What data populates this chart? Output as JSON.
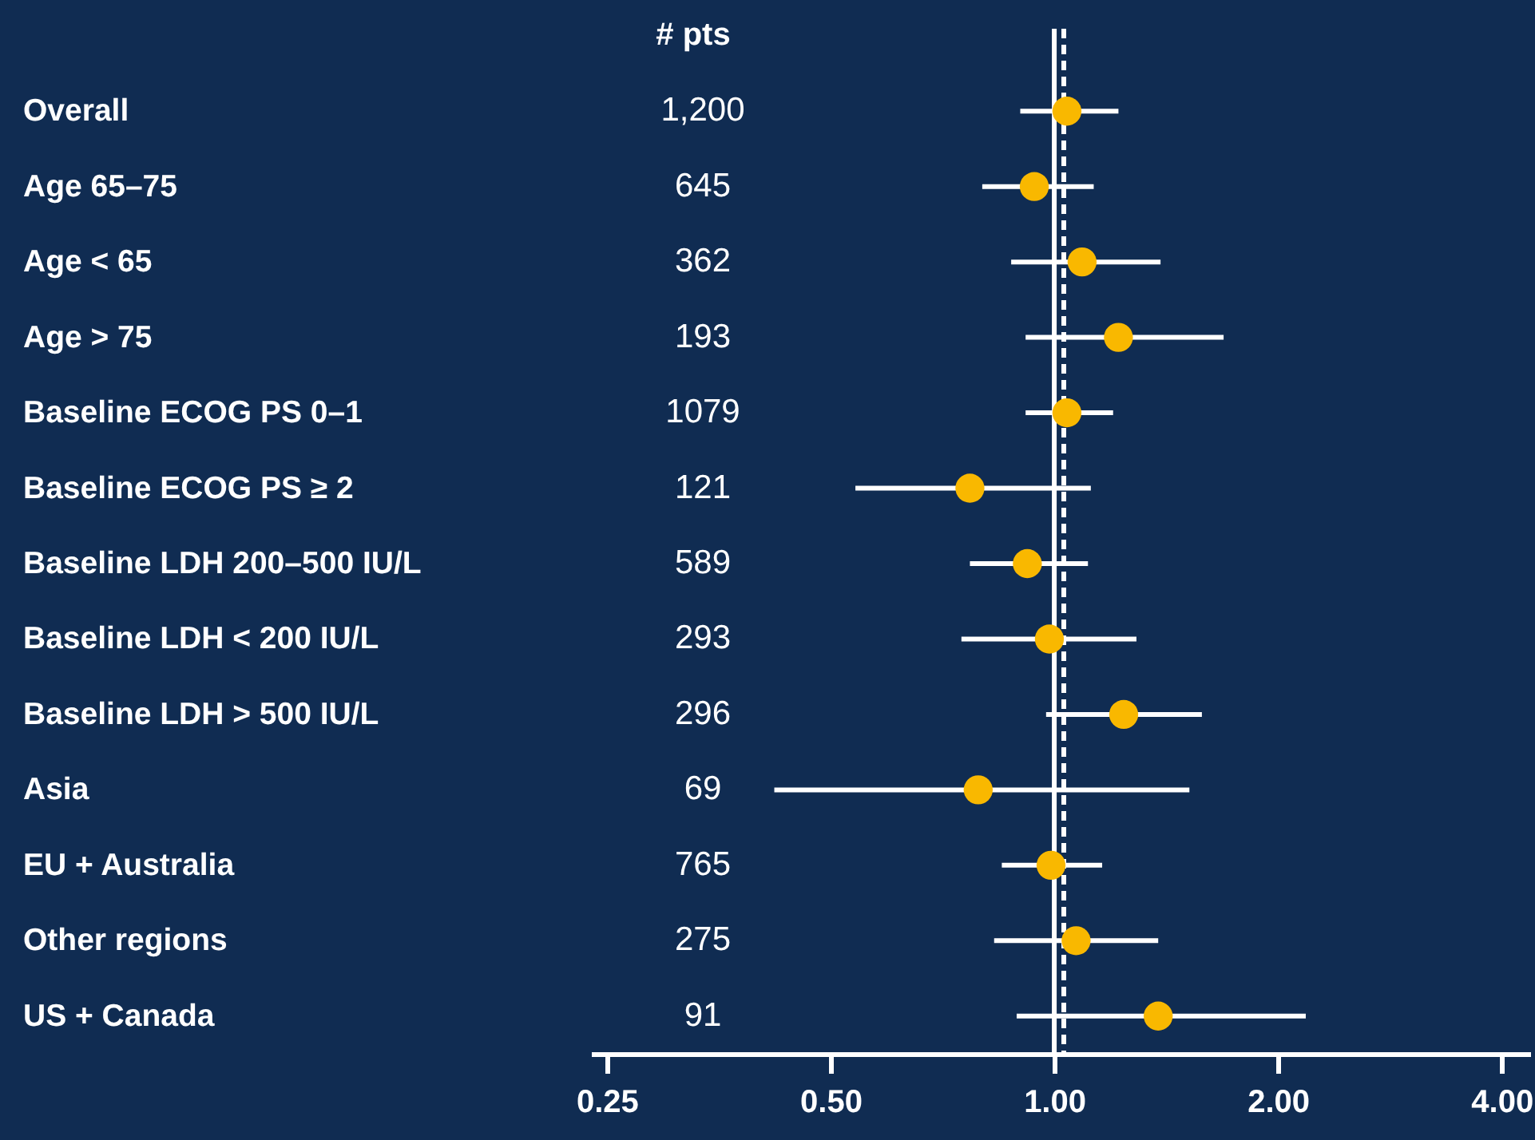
{
  "chart_data": {
    "type": "scatter",
    "orientation": "horizontal",
    "categories": [
      "Overall",
      "Age 65–75",
      "Age < 65",
      "Age > 75",
      "Baseline ECOG PS 0–1",
      "Baseline ECOG PS ≥ 2",
      "Baseline LDH 200–500 IU/L",
      "Baseline LDH < 200 IU/L",
      "Baseline LDH > 500 IU/L",
      "Asia",
      "EU + Australia",
      "Other regions",
      "US + Canada"
    ],
    "color": "#f9b800",
    "values": [
      1.04,
      0.94,
      1.09,
      1.22,
      1.04,
      0.77,
      0.92,
      0.985,
      1.24,
      0.79,
      0.99,
      1.07,
      1.38
    ],
    "errors": [
      [
        0.9,
        1.22
      ],
      [
        0.8,
        1.13
      ],
      [
        0.875,
        1.39
      ],
      [
        0.915,
        1.69
      ],
      [
        0.915,
        1.2
      ],
      [
        0.54,
        1.12
      ],
      [
        0.77,
        1.11
      ],
      [
        0.75,
        1.29
      ],
      [
        0.975,
        1.58
      ],
      [
        0.42,
        1.52
      ],
      [
        0.85,
        1.16
      ],
      [
        0.83,
        1.38
      ],
      [
        0.89,
        2.18
      ]
    ],
    "annotations": [
      "# pts",
      "1,200",
      "645",
      "362",
      "193",
      "1079",
      "121",
      "589",
      "293",
      "296",
      "69",
      "765",
      "275",
      "91"
    ],
    "log": "x",
    "xlim": [
      0.238,
      4.37
    ],
    "xticks": [
      0.25,
      {
        "value": 0.5,
        "label": "0.50"
      },
      {
        "value": 1,
        "label": "1.00"
      },
      {
        "value": 2,
        "label": "2.00"
      },
      {
        "value": 4,
        "label": "4.00"
      }
    ],
    "ref_lines": [
      {
        "axis": "x",
        "value": 1,
        "color": "#ffffff",
        "line_style": "solid"
      },
      {
        "axis": "x",
        "value": 1.03,
        "color": "#ffffff",
        "line_style": "dashed"
      }
    ],
    "marker": "circle",
    "grid": false
  }
}
